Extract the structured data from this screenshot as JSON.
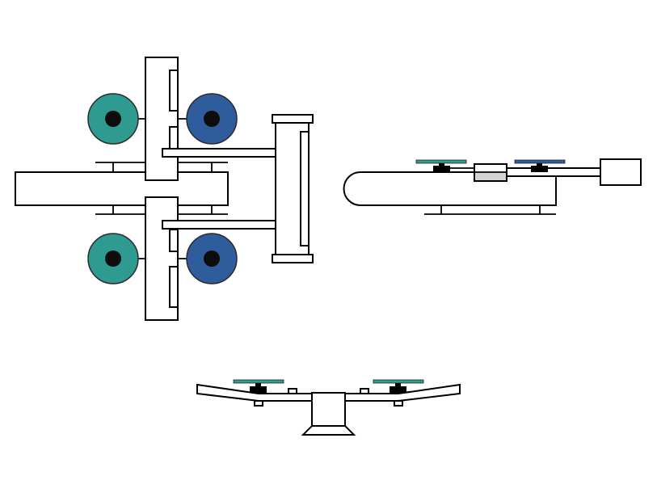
{
  "diagram": {
    "views": [
      "top",
      "side",
      "front"
    ],
    "colors": {
      "line": "#000000",
      "background": "#ffffff",
      "rotor_teal": "#2e9a90",
      "rotor_blue": "#2f5c9c",
      "hub": "#0d0d0d",
      "motor_block": "#000000",
      "payload_fill": "#d4d4d4"
    }
  }
}
